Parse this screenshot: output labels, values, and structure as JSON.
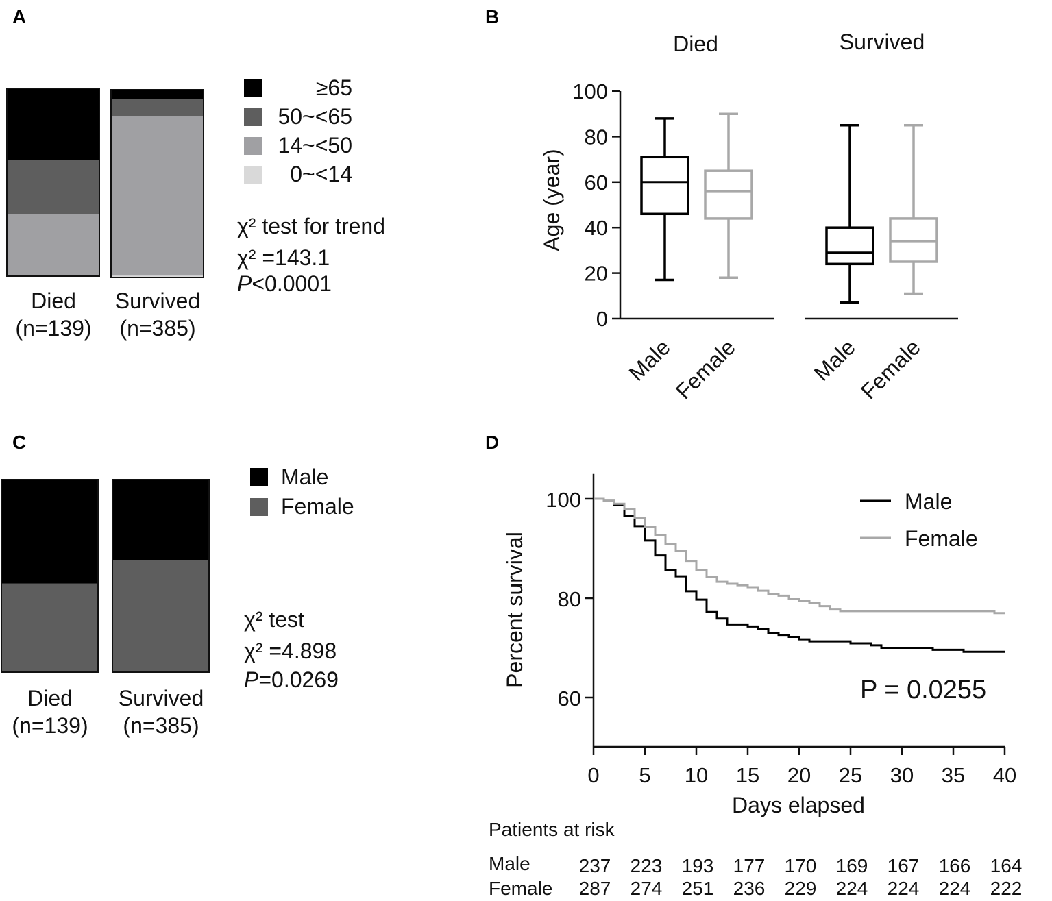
{
  "panels": {
    "a": "A",
    "b": "B",
    "c": "C",
    "d": "D"
  },
  "colors": {
    "black": "#000000",
    "dark": "#5e5e5e",
    "mid": "#a0a0a3",
    "light": "#d9d9d9",
    "gray_line": "#a8a8a8"
  },
  "chart_data": [
    {
      "id": "A",
      "type": "bar",
      "stacked": true,
      "percent": true,
      "categories": [
        "Died",
        "Survived"
      ],
      "category_n": [
        "(n=139)",
        "(n=385)"
      ],
      "series": [
        {
          "name": "0~<14",
          "values": [
            0,
            1
          ]
        },
        {
          "name": "14~<50",
          "values": [
            33,
            85
          ]
        },
        {
          "name": "50~<65",
          "values": [
            29,
            9
          ]
        },
        {
          "name": "≥65",
          "values": [
            38,
            5
          ]
        }
      ],
      "legend": [
        "≥65",
        "50~<65",
        "14~<50",
        "0~<14"
      ],
      "stats": {
        "line1": "χ² test for trend",
        "line2": "χ² =143.1",
        "p_prefix": "P",
        "p_value": "<0.0001"
      }
    },
    {
      "id": "B",
      "type": "box",
      "groups": [
        "Died",
        "Survived"
      ],
      "ylabel": "Age (year)",
      "ylim": [
        0,
        100
      ],
      "yticks": [
        "0",
        "20",
        "40",
        "60",
        "80",
        "100"
      ],
      "xlabels": [
        "Male",
        "Female",
        "Male",
        "Female"
      ],
      "boxes": [
        {
          "group": "Died",
          "sex": "Male",
          "min": 17,
          "q1": 46,
          "median": 60,
          "q3": 71,
          "max": 88
        },
        {
          "group": "Died",
          "sex": "Female",
          "min": 18,
          "q1": 44,
          "median": 56,
          "q3": 65,
          "max": 90
        },
        {
          "group": "Survived",
          "sex": "Male",
          "min": 7,
          "q1": 24,
          "median": 29,
          "q3": 40,
          "max": 85
        },
        {
          "group": "Survived",
          "sex": "Female",
          "min": 11,
          "q1": 25,
          "median": 34,
          "q3": 44,
          "max": 85
        }
      ]
    },
    {
      "id": "C",
      "type": "bar",
      "stacked": true,
      "percent": true,
      "categories": [
        "Died",
        "Survived"
      ],
      "category_n": [
        "(n=139)",
        "(n=385)"
      ],
      "series": [
        {
          "name": "Female",
          "values": [
            46,
            58
          ]
        },
        {
          "name": "Male",
          "values": [
            54,
            42
          ]
        }
      ],
      "legend": [
        "Male",
        "Female"
      ],
      "stats": {
        "line1": "χ² test",
        "line2": "χ² =4.898",
        "p_prefix": "P",
        "p_value": "=0.0269"
      }
    },
    {
      "id": "D",
      "type": "line",
      "subtype": "kaplan-meier",
      "xlabel": "Days elapsed",
      "ylabel": "Percent survival",
      "xlim": [
        0,
        40
      ],
      "ylim": [
        50,
        105
      ],
      "xticks": [
        "0",
        "5",
        "10",
        "15",
        "20",
        "25",
        "30",
        "35",
        "40"
      ],
      "yticks": [
        "60",
        "80",
        "100"
      ],
      "p_text": "P = 0.0255",
      "series": [
        {
          "name": "Male",
          "steps": [
            [
              0,
              100
            ],
            [
              1,
              99.6
            ],
            [
              2,
              98.7
            ],
            [
              3,
              96.6
            ],
            [
              4,
              94.5
            ],
            [
              5,
              91.6
            ],
            [
              6,
              88.6
            ],
            [
              7,
              85.7
            ],
            [
              8,
              84.4
            ],
            [
              9,
              81.4
            ],
            [
              10,
              79.7
            ],
            [
              11,
              77.2
            ],
            [
              12,
              75.9
            ],
            [
              13,
              74.7
            ],
            [
              15,
              74.3
            ],
            [
              16,
              73.8
            ],
            [
              17,
              73.0
            ],
            [
              18,
              72.6
            ],
            [
              19,
              72.2
            ],
            [
              20,
              71.7
            ],
            [
              21,
              71.3
            ],
            [
              25,
              70.9
            ],
            [
              27,
              70.5
            ],
            [
              28,
              70.0
            ],
            [
              33,
              69.6
            ],
            [
              36,
              69.2
            ],
            [
              40,
              69.2
            ]
          ]
        },
        {
          "name": "Female",
          "steps": [
            [
              0,
              100
            ],
            [
              1,
              99.6
            ],
            [
              2,
              99.0
            ],
            [
              3,
              97.9
            ],
            [
              4,
              96.2
            ],
            [
              5,
              94.4
            ],
            [
              6,
              92.7
            ],
            [
              7,
              90.9
            ],
            [
              8,
              89.5
            ],
            [
              9,
              87.5
            ],
            [
              10,
              85.7
            ],
            [
              11,
              84.3
            ],
            [
              12,
              83.3
            ],
            [
              13,
              82.9
            ],
            [
              14,
              82.6
            ],
            [
              15,
              82.2
            ],
            [
              16,
              81.5
            ],
            [
              17,
              80.8
            ],
            [
              18,
              80.5
            ],
            [
              19,
              79.8
            ],
            [
              20,
              79.4
            ],
            [
              21,
              79.1
            ],
            [
              22,
              78.4
            ],
            [
              23,
              77.7
            ],
            [
              24,
              77.4
            ],
            [
              39,
              77.0
            ],
            [
              40,
              77.0
            ]
          ]
        }
      ],
      "risk_table": {
        "title": "Patients at risk",
        "rows": [
          {
            "label": "Male",
            "values": [
              "237",
              "223",
              "193",
              "177",
              "170",
              "169",
              "167",
              "166",
              "164"
            ]
          },
          {
            "label": "Female",
            "values": [
              "287",
              "274",
              "251",
              "236",
              "229",
              "224",
              "224",
              "224",
              "222"
            ]
          }
        ]
      }
    }
  ]
}
